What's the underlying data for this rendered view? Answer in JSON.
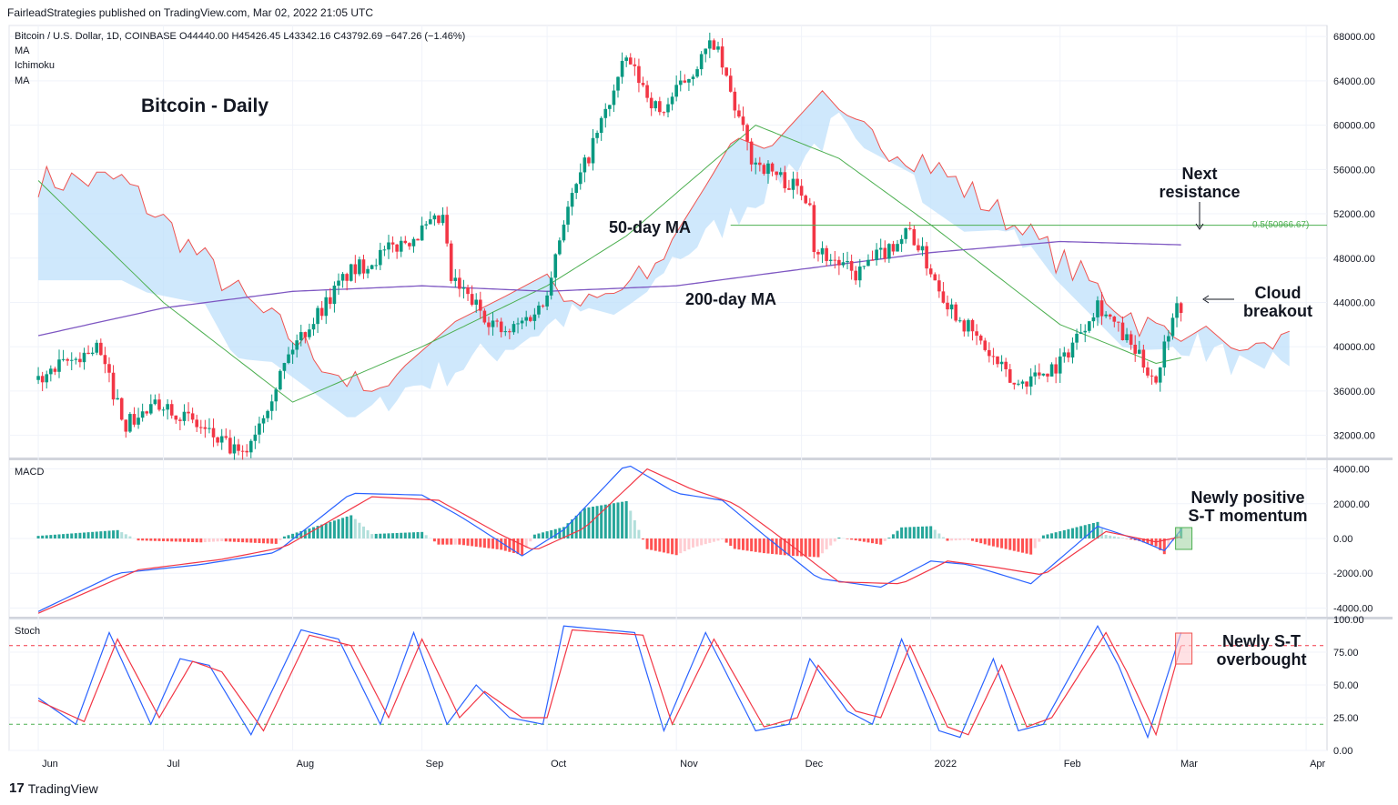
{
  "header": {
    "published": "FairleadStrategies published on TradingView.com, Mar 02, 2022 21:05 UTC",
    "symbol_line": "Bitcoin / U.S. Dollar, 1D, COINBASE  O44440.00  H45426.45  L43342.16  C43792.69  −647.26 (−1.46%)",
    "indicators": [
      "MA",
      "Ichimoku",
      "MA"
    ]
  },
  "annotations": {
    "title": "Bitcoin - Daily",
    "ma50": "50-day MA",
    "ma200": "200-day MA",
    "next_resistance_line1": "Next",
    "next_resistance_line2": "resistance",
    "cloud_breakout_line1": "Cloud",
    "cloud_breakout_line2": "breakout",
    "macd_note_line1": "Newly positive",
    "macd_note_line2": "S-T momentum",
    "stoch_note_line1": "Newly S-T",
    "stoch_note_line2": "overbought",
    "fib_label": "0.5(50966.67)"
  },
  "panes": {
    "macd_label": "MACD",
    "stoch_label": "Stoch"
  },
  "footer": {
    "brand": "TradingView"
  },
  "colors": {
    "up": "#089981",
    "down": "#f23645",
    "ma50": "#4caf50",
    "ma200": "#7e57c2",
    "cloud_fill": "#bbdefb",
    "span_a": "#66bb6a",
    "span_b": "#ef5350",
    "macd": "#2962ff",
    "signal": "#f23645",
    "k": "#2962ff",
    "d": "#f23645"
  },
  "chart_data": [
    {
      "type": "candlestick",
      "pane": "price",
      "ylim": [
        30000,
        69000
      ],
      "yticks": [
        "68000.00",
        "64000.00",
        "60000.00",
        "56000.00",
        "52000.00",
        "48000.00",
        "44000.00",
        "40000.00",
        "36000.00",
        "32000.00"
      ],
      "xticks": [
        "Jun",
        "Jul",
        "Aug",
        "Sep",
        "Oct",
        "Nov",
        "Dec",
        "2022",
        "Feb",
        "Mar",
        "Apr"
      ],
      "close_path_keypoints": [
        [
          "2021-06-01",
          37000
        ],
        [
          "2021-06-15",
          40000
        ],
        [
          "2021-06-22",
          33000
        ],
        [
          "2021-07-01",
          35000
        ],
        [
          "2021-07-20",
          30000
        ],
        [
          "2021-08-01",
          40000
        ],
        [
          "2021-08-14",
          46500
        ],
        [
          "2021-09-06",
          51500
        ],
        [
          "2021-09-08",
          46000
        ],
        [
          "2021-09-21",
          41000
        ],
        [
          "2021-09-30",
          43800
        ],
        [
          "2021-10-05",
          51500
        ],
        [
          "2021-10-20",
          66000
        ],
        [
          "2021-10-28",
          61000
        ],
        [
          "2021-11-10",
          67500
        ],
        [
          "2021-11-19",
          57000
        ],
        [
          "2021-12-03",
          53500
        ],
        [
          "2021-12-04",
          49000
        ],
        [
          "2021-12-14",
          46500
        ],
        [
          "2021-12-27",
          50500
        ],
        [
          "2022-01-05",
          44000
        ],
        [
          "2022-01-21",
          36500
        ],
        [
          "2022-02-01",
          38500
        ],
        [
          "2022-02-10",
          44000
        ],
        [
          "2022-02-24",
          37000
        ],
        [
          "2022-02-28",
          43200
        ],
        [
          "2022-03-02",
          43792.69
        ]
      ],
      "ohlc_last": {
        "open": 44440.0,
        "high": 45426.45,
        "low": 43342.16,
        "close": 43792.69,
        "change": -647.26,
        "change_pct": -1.46
      },
      "ma50_keypoints": [
        [
          "2021-06-01",
          55000
        ],
        [
          "2021-07-01",
          44000
        ],
        [
          "2021-08-01",
          35000
        ],
        [
          "2021-09-01",
          40000
        ],
        [
          "2021-10-01",
          45500
        ],
        [
          "2021-10-20",
          50000
        ],
        [
          "2021-11-20",
          60000
        ],
        [
          "2021-12-10",
          57000
        ],
        [
          "2022-01-01",
          51000
        ],
        [
          "2022-02-01",
          42000
        ],
        [
          "2022-02-24",
          38500
        ],
        [
          "2022-03-02",
          39000
        ]
      ],
      "ma200_keypoints": [
        [
          "2021-06-01",
          41000
        ],
        [
          "2021-07-01",
          43500
        ],
        [
          "2021-08-01",
          45000
        ],
        [
          "2021-09-01",
          45500
        ],
        [
          "2021-10-01",
          45000
        ],
        [
          "2021-11-01",
          45500
        ],
        [
          "2021-12-01",
          47000
        ],
        [
          "2022-01-01",
          48500
        ],
        [
          "2022-02-01",
          49500
        ],
        [
          "2022-03-02",
          49200
        ]
      ],
      "horizontal_line": {
        "label": "0.5(50966.67)",
        "value": 50966.67
      }
    },
    {
      "type": "line+histogram",
      "pane": "macd",
      "ylim": [
        -4500,
        4500
      ],
      "yticks": [
        "4000.00",
        "2000.00",
        "0.00",
        "-2000.00",
        "-4000.00"
      ],
      "macd_keypoints": [
        [
          "2021-06-01",
          -4200
        ],
        [
          "2021-06-20",
          -2000
        ],
        [
          "2021-07-10",
          -1500
        ],
        [
          "2021-07-28",
          -800
        ],
        [
          "2021-08-15",
          2600
        ],
        [
          "2021-09-01",
          2500
        ],
        [
          "2021-09-10",
          1300
        ],
        [
          "2021-09-25",
          -1000
        ],
        [
          "2021-10-05",
          500
        ],
        [
          "2021-10-20",
          4300
        ],
        [
          "2021-11-01",
          2600
        ],
        [
          "2021-11-12",
          2200
        ],
        [
          "2021-11-22",
          200
        ],
        [
          "2021-12-05",
          -2300
        ],
        [
          "2021-12-20",
          -2800
        ],
        [
          "2022-01-01",
          -1300
        ],
        [
          "2022-01-10",
          -1500
        ],
        [
          "2022-01-25",
          -2600
        ],
        [
          "2022-02-10",
          700
        ],
        [
          "2022-02-20",
          -100
        ],
        [
          "2022-02-26",
          -700
        ],
        [
          "2022-03-02",
          500
        ]
      ],
      "signal_keypoints": [
        [
          "2021-06-01",
          -4300
        ],
        [
          "2021-06-25",
          -1800
        ],
        [
          "2021-07-15",
          -1200
        ],
        [
          "2021-07-30",
          -500
        ],
        [
          "2021-08-20",
          2400
        ],
        [
          "2021-09-05",
          2200
        ],
        [
          "2021-09-20",
          200
        ],
        [
          "2021-09-28",
          -700
        ],
        [
          "2021-10-10",
          600
        ],
        [
          "2021-10-25",
          4000
        ],
        [
          "2021-11-05",
          2800
        ],
        [
          "2021-11-15",
          2000
        ],
        [
          "2021-11-28",
          -300
        ],
        [
          "2021-12-10",
          -2500
        ],
        [
          "2021-12-25",
          -2600
        ],
        [
          "2022-01-05",
          -1300
        ],
        [
          "2022-01-15",
          -1600
        ],
        [
          "2022-01-28",
          -2100
        ],
        [
          "2022-02-12",
          400
        ],
        [
          "2022-02-24",
          -200
        ],
        [
          "2022-03-02",
          100
        ]
      ]
    },
    {
      "type": "line",
      "pane": "stoch",
      "ylim": [
        0,
        100
      ],
      "yticks": [
        "100.00",
        "75.00",
        "50.00",
        "25.00",
        "0.00"
      ],
      "bands": [
        20,
        80
      ],
      "k_keypoints": [
        [
          "2021-06-01",
          40
        ],
        [
          "2021-06-10",
          20
        ],
        [
          "2021-06-18",
          90
        ],
        [
          "2021-06-28",
          20
        ],
        [
          "2021-07-05",
          70
        ],
        [
          "2021-07-12",
          65
        ],
        [
          "2021-07-22",
          12
        ],
        [
          "2021-08-03",
          92
        ],
        [
          "2021-08-12",
          85
        ],
        [
          "2021-08-22",
          20
        ],
        [
          "2021-08-30",
          90
        ],
        [
          "2021-09-07",
          20
        ],
        [
          "2021-09-14",
          50
        ],
        [
          "2021-09-22",
          25
        ],
        [
          "2021-09-30",
          20
        ],
        [
          "2021-10-05",
          95
        ],
        [
          "2021-10-22",
          90
        ],
        [
          "2021-10-29",
          15
        ],
        [
          "2021-11-08",
          90
        ],
        [
          "2021-11-20",
          15
        ],
        [
          "2021-11-28",
          20
        ],
        [
          "2021-12-03",
          70
        ],
        [
          "2021-12-12",
          30
        ],
        [
          "2021-12-18",
          20
        ],
        [
          "2021-12-25",
          85
        ],
        [
          "2022-01-03",
          15
        ],
        [
          "2022-01-08",
          10
        ],
        [
          "2022-01-16",
          70
        ],
        [
          "2022-01-22",
          15
        ],
        [
          "2022-01-28",
          20
        ],
        [
          "2022-02-10",
          95
        ],
        [
          "2022-02-15",
          65
        ],
        [
          "2022-02-22",
          10
        ],
        [
          "2022-03-02",
          90
        ]
      ],
      "d_keypoints": [
        [
          "2021-06-01",
          38
        ],
        [
          "2021-06-12",
          22
        ],
        [
          "2021-06-20",
          85
        ],
        [
          "2021-06-30",
          25
        ],
        [
          "2021-07-08",
          68
        ],
        [
          "2021-07-15",
          60
        ],
        [
          "2021-07-25",
          15
        ],
        [
          "2021-08-05",
          88
        ],
        [
          "2021-08-15",
          80
        ],
        [
          "2021-08-24",
          25
        ],
        [
          "2021-09-01",
          85
        ],
        [
          "2021-09-10",
          25
        ],
        [
          "2021-09-16",
          45
        ],
        [
          "2021-09-25",
          25
        ],
        [
          "2021-10-01",
          25
        ],
        [
          "2021-10-07",
          92
        ],
        [
          "2021-10-24",
          88
        ],
        [
          "2021-10-31",
          20
        ],
        [
          "2021-11-10",
          85
        ],
        [
          "2021-11-22",
          18
        ],
        [
          "2021-11-30",
          25
        ],
        [
          "2021-12-05",
          65
        ],
        [
          "2021-12-14",
          30
        ],
        [
          "2021-12-20",
          25
        ],
        [
          "2021-12-27",
          80
        ],
        [
          "2022-01-05",
          18
        ],
        [
          "2022-01-10",
          12
        ],
        [
          "2022-01-18",
          65
        ],
        [
          "2022-01-24",
          18
        ],
        [
          "2022-01-30",
          25
        ],
        [
          "2022-02-12",
          90
        ],
        [
          "2022-02-17",
          60
        ],
        [
          "2022-02-24",
          12
        ],
        [
          "2022-03-02",
          80
        ]
      ]
    }
  ]
}
